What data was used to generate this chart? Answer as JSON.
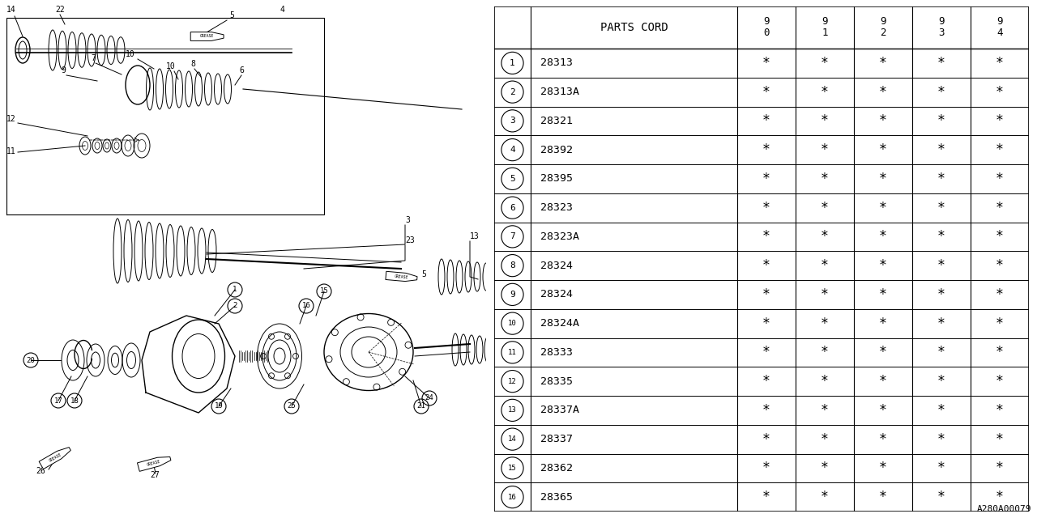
{
  "bg_color": "#ffffff",
  "rows": [
    [
      "1",
      "28313",
      "*",
      "*",
      "*",
      "*",
      "*"
    ],
    [
      "2",
      "28313A",
      "*",
      "*",
      "*",
      "*",
      "*"
    ],
    [
      "3",
      "28321",
      "*",
      "*",
      "*",
      "*",
      "*"
    ],
    [
      "4",
      "28392",
      "*",
      "*",
      "*",
      "*",
      "*"
    ],
    [
      "5",
      "28395",
      "*",
      "*",
      "*",
      "*",
      "*"
    ],
    [
      "6",
      "28323",
      "*",
      "*",
      "*",
      "*",
      "*"
    ],
    [
      "7",
      "28323A",
      "*",
      "*",
      "*",
      "*",
      "*"
    ],
    [
      "8",
      "28324",
      "*",
      "*",
      "*",
      "*",
      "*"
    ],
    [
      "9",
      "28324",
      "*",
      "*",
      "*",
      "*",
      "*"
    ],
    [
      "10",
      "28324A",
      "*",
      "*",
      "*",
      "*",
      "*"
    ],
    [
      "11",
      "28333",
      "*",
      "*",
      "*",
      "*",
      "*"
    ],
    [
      "12",
      "28335",
      "*",
      "*",
      "*",
      "*",
      "*"
    ],
    [
      "13",
      "28337A",
      "*",
      "*",
      "*",
      "*",
      "*"
    ],
    [
      "14",
      "28337",
      "*",
      "*",
      "*",
      "*",
      "*"
    ],
    [
      "15",
      "28362",
      "*",
      "*",
      "*",
      "*",
      "*"
    ],
    [
      "16",
      "28365",
      "*",
      "*",
      "*",
      "*",
      "*"
    ]
  ],
  "footer_code": "A280A00079",
  "line_color": "#000000"
}
